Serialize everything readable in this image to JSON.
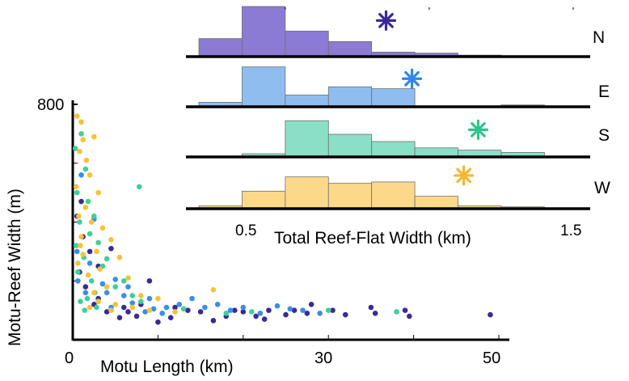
{
  "chart_data": [
    {
      "type": "scatter",
      "xlabel": "Motu Length (km)",
      "ylabel": "Motu-Reef Width (m)",
      "xlim": [
        0,
        50
      ],
      "ylim": [
        0,
        800
      ],
      "x_ticks": [
        "0",
        "30",
        "50"
      ],
      "y_ticks": [
        "800"
      ],
      "series": [
        {
          "color": "#3b2a96",
          "points": [
            [
              0.8,
              230
            ],
            [
              1.5,
              180
            ],
            [
              2.5,
              120
            ],
            [
              3.0,
              140
            ],
            [
              4.0,
              95
            ],
            [
              5.5,
              75
            ],
            [
              6.0,
              110
            ],
            [
              7.5,
              80
            ],
            [
              8.0,
              120
            ],
            [
              10.0,
              60
            ],
            [
              11.5,
              75
            ],
            [
              13.5,
              100
            ],
            [
              15.0,
              95
            ],
            [
              16.5,
              65
            ],
            [
              18.0,
              80
            ],
            [
              19.0,
              100
            ],
            [
              20.0,
              95
            ],
            [
              21.5,
              80
            ],
            [
              22.5,
              70
            ],
            [
              23.0,
              100
            ],
            [
              25.0,
              85
            ],
            [
              26.0,
              100
            ],
            [
              27.5,
              90
            ],
            [
              28.0,
              120
            ],
            [
              30.5,
              100
            ],
            [
              32.0,
              85
            ],
            [
              35.0,
              110
            ],
            [
              35.5,
              90
            ],
            [
              39.0,
              100
            ],
            [
              39.5,
              80
            ],
            [
              49.0,
              85
            ],
            [
              1.2,
              350
            ],
            [
              2.0,
              300
            ],
            [
              4.5,
              310
            ],
            [
              0.5,
              420
            ],
            [
              1.0,
              470
            ],
            [
              3.0,
              250
            ],
            [
              6.5,
              95
            ],
            [
              9.0,
              200
            ],
            [
              12.0,
              110
            ]
          ]
        },
        {
          "color": "#3a8ee6",
          "points": [
            [
              0.6,
              200
            ],
            [
              1.5,
              160
            ],
            [
              2.0,
              260
            ],
            [
              3.0,
              130
            ],
            [
              3.5,
              190
            ],
            [
              4.5,
              110
            ],
            [
              5.0,
              205
            ],
            [
              6.0,
              150
            ],
            [
              7.0,
              125
            ],
            [
              8.5,
              95
            ],
            [
              9.0,
              140
            ],
            [
              10.5,
              90
            ],
            [
              11.0,
              110
            ],
            [
              12.5,
              120
            ],
            [
              14.0,
              140
            ],
            [
              15.5,
              110
            ],
            [
              17.0,
              120
            ],
            [
              18.5,
              100
            ],
            [
              20.0,
              110
            ],
            [
              22.0,
              90
            ],
            [
              24.0,
              115
            ],
            [
              25.5,
              105
            ],
            [
              27.0,
              100
            ],
            [
              29.0,
              90
            ],
            [
              1.0,
              560
            ],
            [
              2.5,
              410
            ],
            [
              0.5,
              300
            ],
            [
              4.0,
              160
            ],
            [
              6.5,
              180
            ],
            [
              9.5,
              105
            ]
          ]
        },
        {
          "color": "#3ecf9a",
          "points": [
            [
              0.3,
              650
            ],
            [
              1.0,
              700
            ],
            [
              1.5,
              580
            ],
            [
              0.5,
              500
            ],
            [
              1.8,
              470
            ],
            [
              2.5,
              420
            ],
            [
              0.8,
              400
            ],
            [
              2.0,
              360
            ],
            [
              3.0,
              330
            ],
            [
              0.4,
              320
            ],
            [
              1.3,
              280
            ],
            [
              4.0,
              275
            ],
            [
              3.5,
              250
            ],
            [
              0.6,
              230
            ],
            [
              2.2,
              200
            ],
            [
              5.0,
              180
            ],
            [
              6.0,
              200
            ],
            [
              7.0,
              150
            ],
            [
              1.7,
              140
            ],
            [
              0.9,
              130
            ],
            [
              8.0,
              130
            ],
            [
              2.8,
              110
            ],
            [
              13.0,
              105
            ],
            [
              18.0,
              90
            ],
            [
              21.0,
              95
            ],
            [
              30.0,
              100
            ],
            [
              38.0,
              95
            ],
            [
              1.4,
              100
            ],
            [
              2.6,
              160
            ],
            [
              7.8,
              520
            ]
          ]
        },
        {
          "color": "#f5c238",
          "points": [
            [
              0.5,
              760
            ],
            [
              1.0,
              740
            ],
            [
              1.2,
              680
            ],
            [
              2.5,
              690
            ],
            [
              0.8,
              640
            ],
            [
              1.6,
              610
            ],
            [
              2.0,
              560
            ],
            [
              0.4,
              520
            ],
            [
              3.0,
              500
            ],
            [
              1.5,
              450
            ],
            [
              0.7,
              420
            ],
            [
              2.2,
              400
            ],
            [
              3.5,
              380
            ],
            [
              1.0,
              350
            ],
            [
              4.5,
              340
            ],
            [
              0.9,
              320
            ],
            [
              2.8,
              300
            ],
            [
              1.2,
              290
            ],
            [
              5.5,
              280
            ],
            [
              0.6,
              260
            ],
            [
              3.2,
              240
            ],
            [
              1.8,
              220
            ],
            [
              6.5,
              210
            ],
            [
              4.0,
              180
            ],
            [
              2.5,
              160
            ],
            [
              8.0,
              150
            ],
            [
              3.0,
              130
            ],
            [
              5.0,
              120
            ],
            [
              10.0,
              140
            ],
            [
              16.5,
              170
            ],
            [
              7.0,
              110
            ],
            [
              9.0,
              100
            ],
            [
              12.0,
              95
            ],
            [
              2.0,
              110
            ],
            [
              4.5,
              100
            ]
          ]
        }
      ]
    },
    {
      "type": "bar",
      "xlabel": "Total Reef-Flat Width (km)",
      "xlim": [
        0.2,
        1.5
      ],
      "x_ticks": [
        "0.5",
        "1.5"
      ],
      "bins": [
        0.2,
        0.35,
        0.5,
        0.65,
        0.8,
        0.95,
        1.1,
        1.25,
        1.4
      ],
      "panels": [
        {
          "label": "N",
          "color": "#8b7bd4",
          "star_color": "#3b2a96",
          "mean": 0.85,
          "star_level": 0.72,
          "counts": [
            0.36,
            1.0,
            0.51,
            0.3,
            0.09,
            0.07,
            0.03,
            0.0
          ]
        },
        {
          "label": "E",
          "color": "#90bdf0",
          "star_color": "#2f86e8",
          "mean": 0.94,
          "star_level": 0.62,
          "counts": [
            0.1,
            0.88,
            0.26,
            0.44,
            0.4,
            0.0,
            0.0,
            0.04
          ]
        },
        {
          "label": "S",
          "color": "#8ae0c6",
          "star_color": "#2fc58e",
          "mean": 1.17,
          "star_level": 0.6,
          "counts": [
            0.0,
            0.07,
            0.8,
            0.5,
            0.34,
            0.2,
            0.15,
            0.1
          ]
        },
        {
          "label": "W",
          "color": "#fcd98a",
          "star_color": "#f4b731",
          "mean": 1.12,
          "star_level": 0.72,
          "counts": [
            0.06,
            0.38,
            0.69,
            0.55,
            0.58,
            0.27,
            0.06,
            0.04
          ]
        }
      ]
    }
  ]
}
